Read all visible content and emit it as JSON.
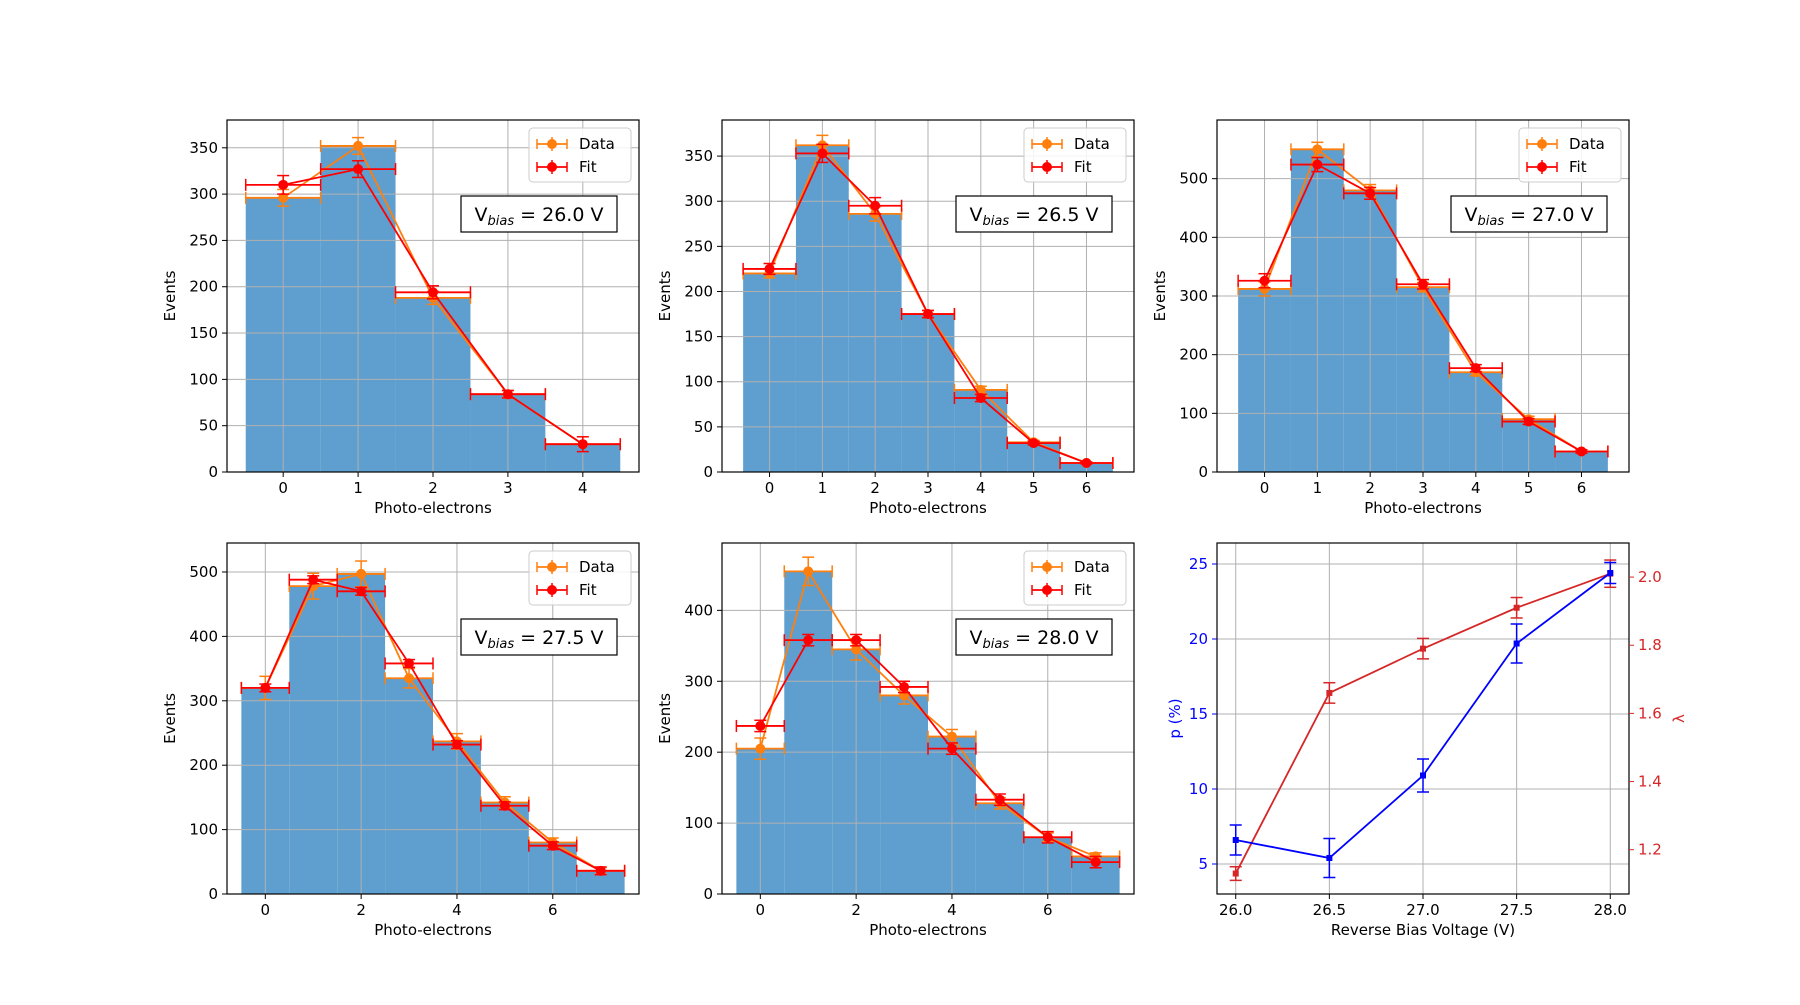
{
  "colors": {
    "bar": "#5f9fcf",
    "data": "#ff7f0e",
    "fit": "#ff0000",
    "p_series": "#0000ff",
    "lambda_series": "#d62728",
    "grid": "#b0b0b0"
  },
  "chart_data": [
    {
      "type": "bar",
      "xlabel": "Photo-electrons",
      "ylabel": "Events",
      "annotation": "26.0 V",
      "x": [
        0,
        1,
        2,
        3,
        4
      ],
      "xlim": [
        -0.75,
        4.75
      ],
      "ylim": [
        0,
        380
      ],
      "xticks": [
        0,
        1,
        2,
        3,
        4
      ],
      "yticks": [
        0,
        50,
        100,
        150,
        200,
        250,
        300,
        350
      ],
      "grid": true,
      "legend_position": "top-right",
      "legend": [
        "Data",
        "Fit"
      ],
      "series": [
        {
          "name": "Data",
          "kind": "histogram+errorbar",
          "values": [
            296,
            352,
            188,
            84,
            30
          ],
          "errors": [
            9,
            9,
            7,
            4,
            0
          ]
        },
        {
          "name": "Fit",
          "kind": "line+errorbar",
          "values": [
            310,
            327,
            194,
            84,
            30
          ],
          "errors": [
            10,
            9,
            7,
            4,
            8
          ]
        }
      ]
    },
    {
      "type": "bar",
      "xlabel": "Photo-electrons",
      "ylabel": "Events",
      "annotation": "26.5 V",
      "x": [
        0,
        1,
        2,
        3,
        4,
        5,
        6
      ],
      "xlim": [
        -0.9,
        6.9
      ],
      "ylim": [
        0,
        390
      ],
      "xticks": [
        0,
        1,
        2,
        3,
        4,
        5,
        6
      ],
      "yticks": [
        0,
        50,
        100,
        150,
        200,
        250,
        300,
        350
      ],
      "grid": true,
      "legend_position": "top-right",
      "legend": [
        "Data",
        "Fit"
      ],
      "series": [
        {
          "name": "Data",
          "kind": "histogram+errorbar",
          "values": [
            220,
            362,
            286,
            175,
            91,
            33,
            10
          ],
          "errors": [
            5,
            11,
            8,
            4,
            4,
            2,
            1
          ]
        },
        {
          "name": "Fit",
          "kind": "line+errorbar",
          "values": [
            225,
            353,
            295,
            175,
            82,
            32,
            10
          ],
          "errors": [
            6,
            10,
            9,
            4,
            4,
            2,
            1
          ]
        }
      ]
    },
    {
      "type": "bar",
      "xlabel": "Photo-electrons",
      "ylabel": "Events",
      "annotation": "27.0 V",
      "x": [
        0,
        1,
        2,
        3,
        4,
        5,
        6
      ],
      "xlim": [
        -0.9,
        6.9
      ],
      "ylim": [
        0,
        600
      ],
      "xticks": [
        0,
        1,
        2,
        3,
        4,
        5,
        6
      ],
      "yticks": [
        0,
        100,
        200,
        300,
        400,
        500
      ],
      "grid": true,
      "legend_position": "top-right",
      "legend": [
        "Data",
        "Fit"
      ],
      "series": [
        {
          "name": "Data",
          "kind": "histogram+errorbar",
          "values": [
            312,
            550,
            480,
            315,
            170,
            90,
            35
          ],
          "errors": [
            12,
            12,
            10,
            8,
            6,
            5,
            3
          ]
        },
        {
          "name": "Fit",
          "kind": "line+errorbar",
          "values": [
            326,
            524,
            475,
            320,
            177,
            86,
            35
          ],
          "errors": [
            12,
            12,
            10,
            8,
            6,
            5,
            3
          ]
        }
      ]
    },
    {
      "type": "bar",
      "xlabel": "Photo-electrons",
      "ylabel": "Events",
      "annotation": "27.5 V",
      "x": [
        0,
        1,
        2,
        3,
        4,
        5,
        6,
        7
      ],
      "xlim": [
        -0.8,
        7.8
      ],
      "ylim": [
        0,
        545
      ],
      "xticks": [
        0,
        2,
        4,
        6
      ],
      "yticks": [
        0,
        100,
        200,
        300,
        400,
        500
      ],
      "grid": true,
      "legend_position": "top-right",
      "legend": [
        "Data",
        "Fit"
      ],
      "series": [
        {
          "name": "Data",
          "kind": "histogram+errorbar",
          "values": [
            320,
            478,
            497,
            335,
            237,
            142,
            80,
            36
          ],
          "errors": [
            18,
            20,
            20,
            15,
            12,
            9,
            7,
            5
          ]
        },
        {
          "name": "Fit",
          "kind": "line+errorbar",
          "values": [
            320,
            488,
            470,
            358,
            232,
            137,
            75,
            36
          ],
          "errors": [
            6,
            6,
            6,
            6,
            6,
            6,
            6,
            6
          ]
        }
      ]
    },
    {
      "type": "bar",
      "xlabel": "Photo-electrons",
      "ylabel": "Events",
      "annotation": "28.0 V",
      "x": [
        0,
        1,
        2,
        3,
        4,
        5,
        6,
        7
      ],
      "xlim": [
        -0.8,
        7.8
      ],
      "ylim": [
        0,
        495
      ],
      "xticks": [
        0,
        2,
        4,
        6
      ],
      "yticks": [
        0,
        100,
        200,
        300,
        400
      ],
      "grid": true,
      "legend_position": "top-right",
      "legend": [
        "Data",
        "Fit"
      ],
      "series": [
        {
          "name": "Data",
          "kind": "histogram+errorbar",
          "values": [
            205,
            455,
            345,
            280,
            222,
            128,
            80,
            53
          ],
          "errors": [
            15,
            20,
            15,
            12,
            10,
            8,
            6,
            5
          ]
        },
        {
          "name": "Fit",
          "kind": "line+errorbar",
          "values": [
            237,
            358,
            358,
            292,
            205,
            133,
            80,
            45
          ],
          "errors": [
            8,
            8,
            8,
            8,
            8,
            8,
            8,
            8
          ]
        }
      ]
    },
    {
      "type": "line",
      "xlabel": "Reverse Bias Voltage (V)",
      "ylabel": "p (%)",
      "ylabel_right": "λ",
      "x": [
        26.0,
        26.5,
        27.0,
        27.5,
        28.0
      ],
      "xlim": [
        25.9,
        28.1
      ],
      "ylim": [
        3.0,
        26.4
      ],
      "ylim_right": [
        1.07,
        2.1
      ],
      "xticks": [
        26.0,
        26.5,
        27.0,
        27.5,
        28.0
      ],
      "yticks": [
        5,
        10,
        15,
        20,
        25
      ],
      "yticks_right": [
        1.2,
        1.4,
        1.6,
        1.8,
        2.0
      ],
      "grid": true,
      "series": [
        {
          "axis": "left",
          "values": [
            6.6,
            5.4,
            10.9,
            19.7,
            24.4
          ],
          "errors": [
            1.0,
            1.3,
            1.1,
            1.3,
            0.7
          ]
        },
        {
          "axis": "right",
          "values": [
            1.13,
            1.66,
            1.79,
            1.91,
            2.01
          ],
          "errors": [
            0.02,
            0.03,
            0.03,
            0.03,
            0.04
          ]
        }
      ]
    }
  ]
}
